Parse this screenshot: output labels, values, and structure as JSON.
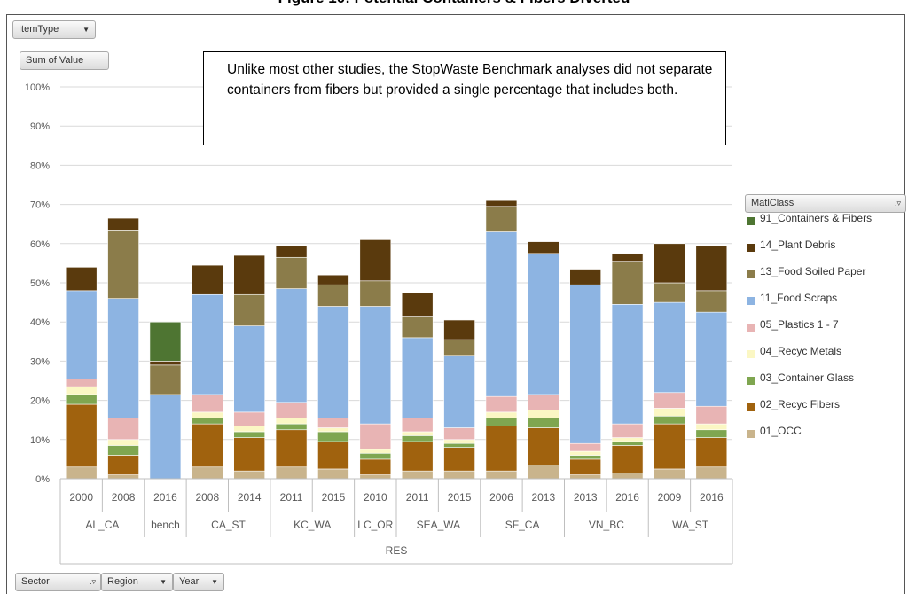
{
  "page_title": "Figure 10: Potential Containers & Fibers Diverted",
  "note": "Unlike most other studies, the StopWaste Benchmark analyses did not separate containers from fibers but provided a single percentage that includes both.",
  "pivot": {
    "item_type": "ItemType",
    "sum_of_value": "Sum of Value",
    "legend_field": "MatlClass",
    "sector": "Sector",
    "region": "Region",
    "year": "Year"
  },
  "icons": {
    "dropdown": "chevron-down-icon",
    "filter": "filter-dropdown-icon"
  },
  "chart_data": {
    "type": "bar",
    "stacked": true,
    "ylim": [
      0,
      100
    ],
    "yticks": [
      "0%",
      "10%",
      "20%",
      "30%",
      "40%",
      "50%",
      "60%",
      "70%",
      "80%",
      "90%",
      "100%"
    ],
    "grid": true,
    "legend_position": "right",
    "categories": [
      {
        "year": "2000",
        "region": "AL_CA"
      },
      {
        "year": "2008",
        "region": "AL_CA"
      },
      {
        "year": "2016",
        "region": "bench"
      },
      {
        "year": "2008",
        "region": "CA_ST"
      },
      {
        "year": "2014",
        "region": "CA_ST"
      },
      {
        "year": "2011",
        "region": "KC_WA"
      },
      {
        "year": "2015",
        "region": "KC_WA"
      },
      {
        "year": "2010",
        "region": "LC_OR"
      },
      {
        "year": "2011",
        "region": "SEA_WA"
      },
      {
        "year": "2015",
        "region": "SEA_WA"
      },
      {
        "year": "2006",
        "region": "SF_CA"
      },
      {
        "year": "2013",
        "region": "SF_CA"
      },
      {
        "year": "2013",
        "region": "VN_BC"
      },
      {
        "year": "2016",
        "region": "VN_BC"
      },
      {
        "year": "2009",
        "region": "WA_ST"
      },
      {
        "year": "2016",
        "region": "WA_ST"
      }
    ],
    "regions": [
      {
        "label": "AL_CA",
        "span": 2
      },
      {
        "label": "bench",
        "span": 1
      },
      {
        "label": "CA_ST",
        "span": 2
      },
      {
        "label": "KC_WA",
        "span": 2
      },
      {
        "label": "LC_OR",
        "span": 1
      },
      {
        "label": "SEA_WA",
        "span": 2
      },
      {
        "label": "SF_CA",
        "span": 2
      },
      {
        "label": "VN_BC",
        "span": 2
      },
      {
        "label": "WA_ST",
        "span": 2
      }
    ],
    "sector": "RES",
    "series": [
      {
        "name": "01_OCC",
        "color": "#c9b48c",
        "values": [
          3.0,
          1.0,
          0,
          3.0,
          2.0,
          3.0,
          2.5,
          1.0,
          2.0,
          2.0,
          2.0,
          3.5,
          1.0,
          1.5,
          2.5,
          3.0
        ]
      },
      {
        "name": "02_Recyc Fibers",
        "color": "#a0620e",
        "values": [
          16.0,
          5.0,
          0,
          11.0,
          8.5,
          9.5,
          7.0,
          4.0,
          7.5,
          6.0,
          11.5,
          9.5,
          4.0,
          7.0,
          11.5,
          7.5
        ]
      },
      {
        "name": "03_Container Glass",
        "color": "#7fa650",
        "values": [
          2.5,
          2.5,
          0,
          1.5,
          1.5,
          1.5,
          2.5,
          1.5,
          1.5,
          1.0,
          2.0,
          2.5,
          1.0,
          1.0,
          2.0,
          2.0
        ]
      },
      {
        "name": "04_Recyc Metals",
        "color": "#fbf7c4",
        "values": [
          2.0,
          1.5,
          0,
          1.5,
          1.5,
          1.5,
          1.0,
          1.0,
          1.0,
          1.0,
          1.5,
          2.0,
          1.0,
          1.0,
          2.0,
          1.5
        ]
      },
      {
        "name": "05_Plastics 1 - 7",
        "color": "#e8b4b4",
        "values": [
          2.0,
          5.5,
          0,
          4.5,
          3.5,
          4.0,
          2.5,
          6.5,
          3.5,
          3.0,
          4.0,
          4.0,
          2.0,
          3.5,
          4.0,
          4.5
        ]
      },
      {
        "name": "11_Food Scraps",
        "color": "#8db4e2",
        "values": [
          22.5,
          30.5,
          21.5,
          25.5,
          22.0,
          29.0,
          28.5,
          30.0,
          20.5,
          18.5,
          42.0,
          36.0,
          40.5,
          30.5,
          23.0,
          24.0
        ]
      },
      {
        "name": "13_Food Soiled Paper",
        "color": "#8b7c4a",
        "values": [
          0,
          17.5,
          7.5,
          0,
          8.0,
          8.0,
          5.5,
          6.5,
          5.5,
          4.0,
          6.5,
          0,
          0,
          11.0,
          5.0,
          5.5
        ]
      },
      {
        "name": "14_Plant Debris",
        "color": "#5a3a0d",
        "values": [
          6.0,
          3.0,
          1.0,
          7.5,
          10.0,
          3.0,
          2.5,
          10.5,
          6.0,
          5.0,
          1.5,
          3.0,
          4.0,
          2.0,
          10.0,
          11.5
        ]
      },
      {
        "name": "91_Containers & Fibers",
        "color": "#4e7532",
        "values": [
          0,
          0,
          10.0,
          0,
          0,
          0,
          0,
          0,
          0,
          0,
          0,
          0,
          0,
          0,
          0,
          0
        ]
      }
    ]
  }
}
